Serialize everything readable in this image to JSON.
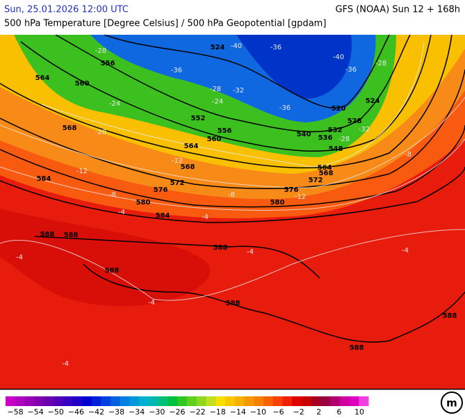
{
  "header": {
    "datetime": "Sun, 25.01.2026 12:00 UTC",
    "model": "GFS (NOAA) Sun 12 + 168h",
    "subtitle": "500 hPa Temperature [Degree Celsius] / 500 hPa Geopotential [gpdam]"
  },
  "map": {
    "geopotential_labels": [
      "524",
      "556",
      "564",
      "560",
      "552",
      "556",
      "560",
      "568",
      "564",
      "568",
      "572",
      "576",
      "584",
      "580",
      "584",
      "576",
      "572",
      "568",
      "564",
      "548",
      "536",
      "540",
      "532",
      "528",
      "520",
      "524",
      "580",
      "588",
      "588",
      "588",
      "588",
      "588",
      "588",
      "588"
    ],
    "temperature_labels": [
      "-28",
      "-40",
      "-36",
      "-40",
      "-36",
      "-28",
      "-36",
      "-32",
      "-28",
      "-24",
      "-24",
      "-36",
      "-32",
      "-28",
      "-20",
      "-12",
      "-12",
      "-8",
      "-8",
      "-12",
      "-4",
      "-4",
      "-4",
      "-4",
      "-4",
      "-4",
      "-4",
      "-8"
    ]
  },
  "colorbar": {
    "colors": [
      "#c800c8",
      "#b000c0",
      "#9800b8",
      "#8000b0",
      "#6800b0",
      "#5000b8",
      "#3800c0",
      "#2000c8",
      "#0000d0",
      "#0020d8",
      "#0040e0",
      "#0060e0",
      "#0080e0",
      "#0098d8",
      "#00b0d0",
      "#00b8b0",
      "#00c078",
      "#00c040",
      "#30c820",
      "#60d020",
      "#90d820",
      "#c0e020",
      "#f8e000",
      "#f8c800",
      "#f8b000",
      "#f89800",
      "#f88000",
      "#f86000",
      "#f84000",
      "#f02000",
      "#e00000",
      "#c80000",
      "#a80020",
      "#980040",
      "#b00070",
      "#d000a0",
      "#e000c0",
      "#f040e0"
    ],
    "labels": [
      "−58",
      "−54",
      "−50",
      "−46",
      "−42",
      "−38",
      "−34",
      "−30",
      "−26",
      "−22",
      "−18",
      "−14",
      "−10",
      "−6",
      "−2",
      "2",
      "6",
      "10"
    ]
  }
}
